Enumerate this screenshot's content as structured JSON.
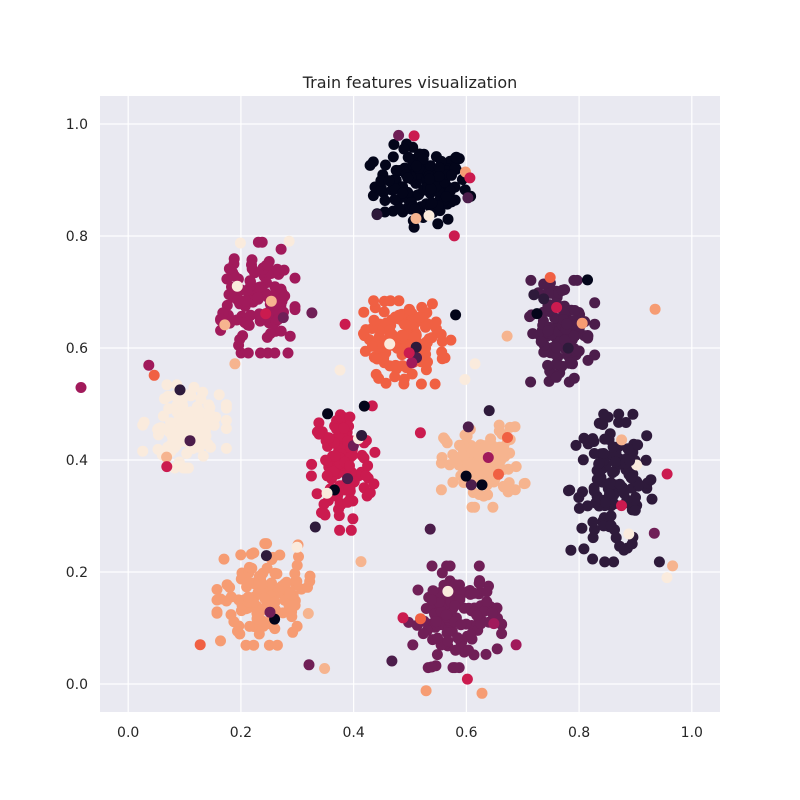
{
  "chart_data": {
    "type": "scatter",
    "title": "Train features visualization",
    "xlabel": "",
    "ylabel": "",
    "xlim": [
      -0.05,
      1.05
    ],
    "ylim": [
      -0.05,
      1.05
    ],
    "xticks": [
      "0.0",
      "0.2",
      "0.4",
      "0.6",
      "0.8",
      "1.0"
    ],
    "yticks": [
      "0.0",
      "0.2",
      "0.4",
      "0.6",
      "0.8",
      "1.0"
    ],
    "grid": true,
    "legend": "none",
    "background_color": "#e9e9f1",
    "grid_color": "#ffffff",
    "series": [
      {
        "color": "#03051a",
        "center": [
          0.52,
          0.89
        ],
        "spread": [
          0.055,
          0.045
        ],
        "count": 140
      },
      {
        "color": "#4c1d4b",
        "center": [
          0.77,
          0.63
        ],
        "spread": [
          0.035,
          0.055
        ],
        "count": 110
      },
      {
        "color": "#2e1a3b",
        "center": [
          0.86,
          0.35
        ],
        "spread": [
          0.05,
          0.08
        ],
        "count": 130
      },
      {
        "color": "#a11a5b",
        "center": [
          0.23,
          0.69
        ],
        "spread": [
          0.04,
          0.06
        ],
        "count": 120
      },
      {
        "color": "#cb1b4f",
        "center": [
          0.38,
          0.39
        ],
        "spread": [
          0.035,
          0.07
        ],
        "count": 120
      },
      {
        "color": "#f06043",
        "center": [
          0.49,
          0.61
        ],
        "spread": [
          0.05,
          0.045
        ],
        "count": 130
      },
      {
        "color": "#f6b48f",
        "center": [
          0.63,
          0.39
        ],
        "spread": [
          0.045,
          0.045
        ],
        "count": 120
      },
      {
        "color": "#f69c73",
        "center": [
          0.24,
          0.16
        ],
        "spread": [
          0.05,
          0.055
        ],
        "count": 130
      },
      {
        "color": "#701f57",
        "center": [
          0.58,
          0.12
        ],
        "spread": [
          0.05,
          0.055
        ],
        "count": 130
      },
      {
        "color": "#faebdd",
        "center": [
          0.1,
          0.46
        ],
        "spread": [
          0.045,
          0.045
        ],
        "count": 120
      }
    ]
  }
}
